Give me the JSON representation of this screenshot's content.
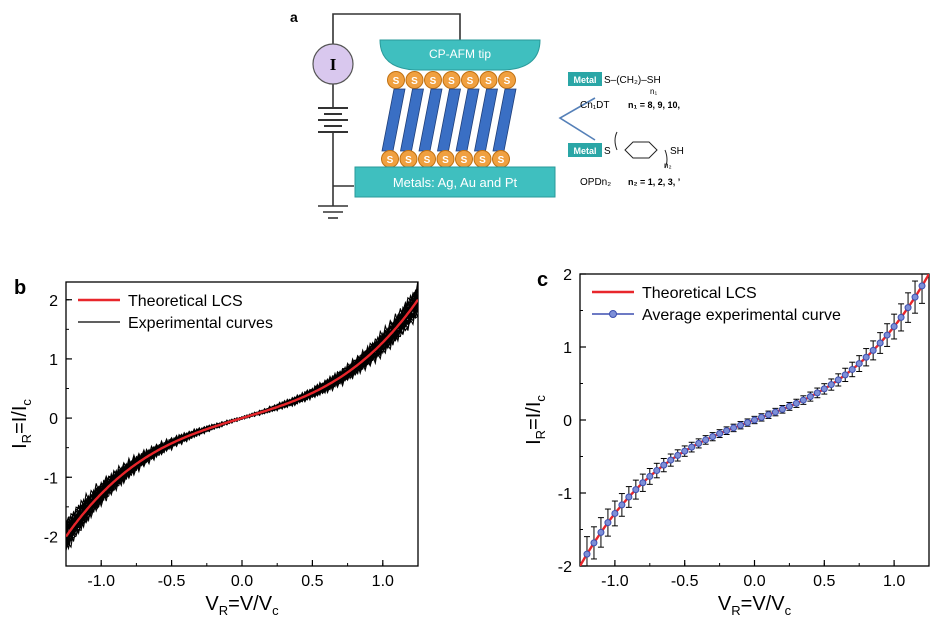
{
  "panel_a": {
    "label": "a",
    "meter_label": "I",
    "tip_label": "CP-AFM tip",
    "substrate_label": "Metals: Ag, Au and Pt",
    "sulfur_label": "S",
    "metal_tag": "Metal",
    "alkyl": {
      "name": "Cn₁DT",
      "n_values": "n₁ = 8, 9, 10,",
      "chain": "S–(CH₂)–SH",
      "sub": "n₁"
    },
    "aryl": {
      "name": "OPDn₂",
      "n_values": "n₂ = 1, 2, 3, ’",
      "chain_left": "S",
      "chain_right": "SH",
      "sub": "n₂"
    },
    "colors": {
      "tip": "#3fbfbf",
      "substrate": "#3fbfbf",
      "molecule": "#3a6fc4",
      "sulfur": "#f0a040",
      "meter": "#d9c8ee"
    }
  },
  "chart_data": [
    {
      "panel": "b",
      "type": "line",
      "xlabel": "V_R=V/V_c",
      "ylabel": "I_R=I/I_c",
      "xlim": [
        -1.25,
        1.25
      ],
      "ylim": [
        -2.5,
        2.3
      ],
      "xticks": [
        -1.0,
        -0.5,
        0.0,
        0.5,
        1.0
      ],
      "yticks": [
        -2,
        -1,
        0,
        1,
        2
      ],
      "legend": "top-left",
      "grid": false,
      "series": [
        {
          "name": "Theoretical LCS",
          "color": "#e8262b",
          "x": [
            -1.25,
            -1.0,
            -0.75,
            -0.5,
            -0.25,
            0.0,
            0.25,
            0.5,
            0.75,
            1.0,
            1.25
          ],
          "y": [
            -1.78,
            -1.0,
            -0.58,
            -0.35,
            -0.17,
            0.0,
            0.17,
            0.35,
            0.58,
            1.0,
            1.78
          ]
        },
        {
          "name": "Experimental curves",
          "color": "#000000",
          "band": true
        }
      ]
    },
    {
      "panel": "c",
      "type": "line",
      "xlabel": "V_R=V/V_c",
      "ylabel": "I_R=I/I_c",
      "xlim": [
        -1.25,
        1.25
      ],
      "ylim": [
        -2.0,
        2.0
      ],
      "xticks": [
        -1.0,
        -0.5,
        0.0,
        0.5,
        1.0
      ],
      "yticks": [
        -2,
        -1,
        0,
        1,
        2
      ],
      "legend": "top-left",
      "grid": false,
      "series": [
        {
          "name": "Theoretical LCS",
          "color": "#e8262b",
          "x": [
            -1.25,
            -1.0,
            -0.75,
            -0.5,
            -0.25,
            0.0,
            0.25,
            0.5,
            0.75,
            1.0,
            1.25
          ],
          "y": [
            -1.78,
            -1.0,
            -0.58,
            -0.35,
            -0.17,
            0.0,
            0.17,
            0.35,
            0.58,
            1.0,
            1.78
          ]
        },
        {
          "name": "Average experimental curve",
          "color": "#3d4fb0",
          "markers": true,
          "error_bars": true
        }
      ]
    }
  ]
}
